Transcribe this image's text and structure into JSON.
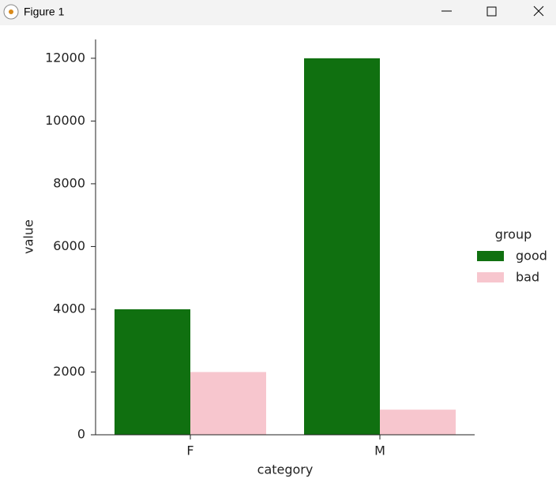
{
  "window": {
    "title": "Figure 1"
  },
  "chart_data": {
    "type": "bar",
    "x_label": "category",
    "y_label": "value",
    "categories": [
      "F",
      "M"
    ],
    "series": [
      {
        "name": "good",
        "color": "#107010",
        "values": [
          4000,
          12000
        ]
      },
      {
        "name": "bad",
        "color": "#f7c6ce",
        "values": [
          2000,
          800
        ]
      }
    ],
    "legend_title": "group",
    "legend": "right",
    "ylim": [
      0,
      12600
    ],
    "yticks": [
      0,
      2000,
      4000,
      6000,
      8000,
      10000,
      12000
    ],
    "grid": false
  }
}
